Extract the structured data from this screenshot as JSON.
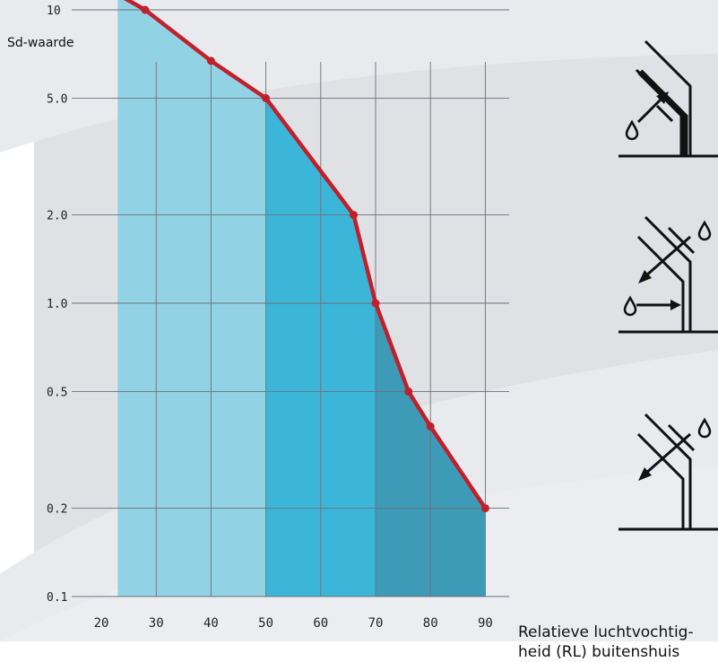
{
  "chart_data": {
    "type": "area",
    "ylabel": "Sd-waarde",
    "xlabel": "Relatieve luchtvochtig-heid (RL) buitenshuis",
    "xlabel_lines": [
      "Relatieve luchtvochtig-",
      "heid (RL) buitenshuis"
    ],
    "x_ticks": [
      20,
      30,
      40,
      50,
      60,
      70,
      80,
      90
    ],
    "y_ticks": [
      0.1,
      0.2,
      0.5,
      1.0,
      2.0,
      5.0,
      10
    ],
    "y_tick_labels": [
      "0.1",
      "0.2",
      "0.5",
      "1.0",
      "2.0",
      "5.0",
      "10"
    ],
    "y_scale": "log",
    "xlim": [
      20,
      94
    ],
    "ylim": [
      0.1,
      12
    ],
    "grid": true,
    "series": [
      {
        "x": [
          23,
          28,
          40,
          50,
          66,
          70,
          76,
          80,
          90
        ],
        "y": [
          11.3,
          10,
          6.7,
          5.0,
          2.0,
          1.0,
          0.5,
          0.38,
          0.2
        ],
        "color": "#c0202a"
      }
    ],
    "regions": [
      {
        "x_from": 23,
        "x_to": 50,
        "color": "#92d2e5"
      },
      {
        "x_from": 50,
        "x_to": 70,
        "color": "#3cb6d8"
      },
      {
        "x_from": 70,
        "x_to": 90,
        "color": "#3d9bb8"
      }
    ]
  },
  "icons": [
    "roof-vapour-barrier-icon",
    "roof-two-way-diffusion-icon",
    "roof-outward-diffusion-icon"
  ]
}
